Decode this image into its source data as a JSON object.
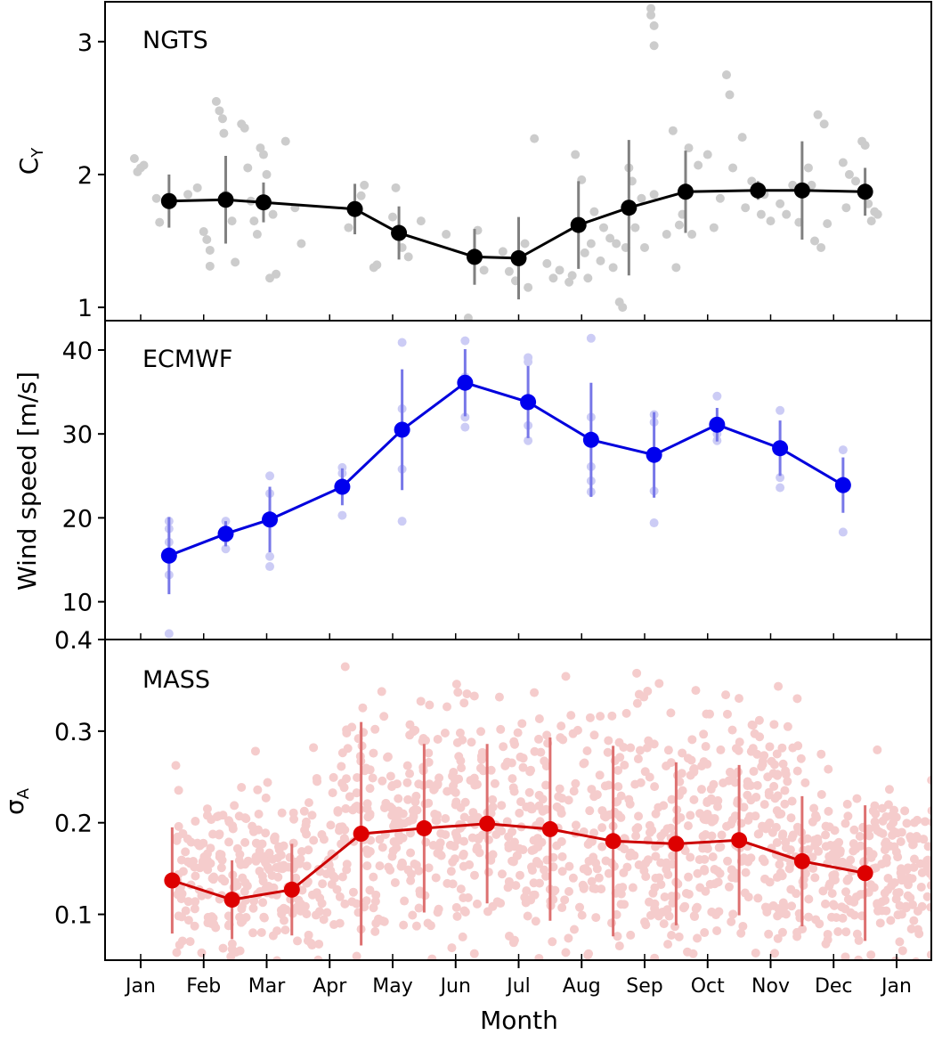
{
  "figure": {
    "xlabel": "Month",
    "x_ticks": [
      "Jan",
      "Feb",
      "Mar",
      "Apr",
      "May",
      "Jun",
      "Jul",
      "Aug",
      "Sep",
      "Oct",
      "Nov",
      "Dec",
      "Jan"
    ]
  },
  "chart_data": [
    {
      "type": "scatter+line",
      "panel_label": "NGTS",
      "ylabel_base": "C",
      "ylabel_sub": "Y",
      "ylim": [
        0.9,
        3.3
      ],
      "yticks": [
        "1",
        "2",
        "3"
      ],
      "colors": {
        "line": "#000000",
        "marker": "#000000",
        "errorbar": "#808080",
        "scatter": "#cccccc"
      },
      "line_points": [
        {
          "x": 1.45,
          "y": 1.8,
          "err": 0.2
        },
        {
          "x": 2.35,
          "y": 1.81,
          "err": 0.33
        },
        {
          "x": 2.95,
          "y": 1.79,
          "err": 0.15
        },
        {
          "x": 4.4,
          "y": 1.74,
          "err": 0.19
        },
        {
          "x": 5.1,
          "y": 1.56,
          "err": 0.2
        },
        {
          "x": 6.3,
          "y": 1.38,
          "err": 0.21
        },
        {
          "x": 7.0,
          "y": 1.37,
          "err": 0.31
        },
        {
          "x": 7.95,
          "y": 1.62,
          "err": 0.33
        },
        {
          "x": 8.75,
          "y": 1.75,
          "err": 0.51
        },
        {
          "x": 9.65,
          "y": 1.87,
          "err": 0.31
        },
        {
          "x": 10.8,
          "y": 1.88,
          "err": 0.07
        },
        {
          "x": 11.5,
          "y": 1.88,
          "err": 0.37
        },
        {
          "x": 12.5,
          "y": 1.87,
          "err": 0.18
        }
      ],
      "scatter_points": [
        [
          0.9,
          2.12
        ],
        [
          0.95,
          2.02
        ],
        [
          1.0,
          2.05
        ],
        [
          1.05,
          2.07
        ],
        [
          1.25,
          1.82
        ],
        [
          1.3,
          1.64
        ],
        [
          1.75,
          1.85
        ],
        [
          1.9,
          1.9
        ],
        [
          2.0,
          1.57
        ],
        [
          2.05,
          1.51
        ],
        [
          2.1,
          1.43
        ],
        [
          2.1,
          1.31
        ],
        [
          2.2,
          2.55
        ],
        [
          2.25,
          2.48
        ],
        [
          2.3,
          2.42
        ],
        [
          2.32,
          2.31
        ],
        [
          2.35,
          1.85
        ],
        [
          2.45,
          1.65
        ],
        [
          2.5,
          1.34
        ],
        [
          2.6,
          2.38
        ],
        [
          2.65,
          2.35
        ],
        [
          2.7,
          2.05
        ],
        [
          2.75,
          1.8
        ],
        [
          2.8,
          1.65
        ],
        [
          2.85,
          1.55
        ],
        [
          2.9,
          2.2
        ],
        [
          2.95,
          2.15
        ],
        [
          3.0,
          2.0
        ],
        [
          3.05,
          1.22
        ],
        [
          3.1,
          1.7
        ],
        [
          3.15,
          1.25
        ],
        [
          3.3,
          2.25
        ],
        [
          3.45,
          1.75
        ],
        [
          3.55,
          1.48
        ],
        [
          4.3,
          1.6
        ],
        [
          4.5,
          1.84
        ],
        [
          4.55,
          1.92
        ],
        [
          4.7,
          1.3
        ],
        [
          4.75,
          1.32
        ],
        [
          5.0,
          1.68
        ],
        [
          5.05,
          1.9
        ],
        [
          5.15,
          1.45
        ],
        [
          5.25,
          1.38
        ],
        [
          5.45,
          1.65
        ],
        [
          5.85,
          1.55
        ],
        [
          6.2,
          0.92
        ],
        [
          6.25,
          0.87
        ],
        [
          6.35,
          1.58
        ],
        [
          6.45,
          1.28
        ],
        [
          6.75,
          1.42
        ],
        [
          6.85,
          1.27
        ],
        [
          6.95,
          1.2
        ],
        [
          7.1,
          1.48
        ],
        [
          7.15,
          1.15
        ],
        [
          7.25,
          2.27
        ],
        [
          7.45,
          1.33
        ],
        [
          7.55,
          1.22
        ],
        [
          7.65,
          1.28
        ],
        [
          7.8,
          1.19
        ],
        [
          7.85,
          1.24
        ],
        [
          7.9,
          2.15
        ],
        [
          8.0,
          1.96
        ],
        [
          8.05,
          1.41
        ],
        [
          8.1,
          1.22
        ],
        [
          8.15,
          1.48
        ],
        [
          8.2,
          1.72
        ],
        [
          8.3,
          1.35
        ],
        [
          8.35,
          1.6
        ],
        [
          8.45,
          1.52
        ],
        [
          8.5,
          1.3
        ],
        [
          8.55,
          1.48
        ],
        [
          8.6,
          1.04
        ],
        [
          8.65,
          1.0
        ],
        [
          8.7,
          1.45
        ],
        [
          8.75,
          2.05
        ],
        [
          8.8,
          1.95
        ],
        [
          8.85,
          1.6
        ],
        [
          8.95,
          1.82
        ],
        [
          9.0,
          1.45
        ],
        [
          9.15,
          1.85
        ],
        [
          9.35,
          1.55
        ],
        [
          9.45,
          2.33
        ],
        [
          9.5,
          1.3
        ],
        [
          9.55,
          1.62
        ],
        [
          9.6,
          1.7
        ],
        [
          9.7,
          2.2
        ],
        [
          9.75,
          1.55
        ],
        [
          9.85,
          2.07
        ],
        [
          10.0,
          2.15
        ],
        [
          10.1,
          1.6
        ],
        [
          10.2,
          1.82
        ],
        [
          10.3,
          2.75
        ],
        [
          10.35,
          2.6
        ],
        [
          10.4,
          2.05
        ],
        [
          10.55,
          2.28
        ],
        [
          10.6,
          1.75
        ],
        [
          10.7,
          1.95
        ],
        [
          10.85,
          1.7
        ],
        [
          10.9,
          1.85
        ],
        [
          11.0,
          1.65
        ],
        [
          11.15,
          1.78
        ],
        [
          11.25,
          1.7
        ],
        [
          11.35,
          1.92
        ],
        [
          11.45,
          1.64
        ],
        [
          11.6,
          2.05
        ],
        [
          11.65,
          1.92
        ],
        [
          11.7,
          1.5
        ],
        [
          11.75,
          2.45
        ],
        [
          11.8,
          1.45
        ],
        [
          11.85,
          2.38
        ],
        [
          11.9,
          1.63
        ],
        [
          12.15,
          2.09
        ],
        [
          12.2,
          1.75
        ],
        [
          12.25,
          2.0
        ],
        [
          12.35,
          1.95
        ],
        [
          12.45,
          2.25
        ],
        [
          12.5,
          2.22
        ],
        [
          12.55,
          1.78
        ],
        [
          12.6,
          1.65
        ],
        [
          12.65,
          1.72
        ],
        [
          12.7,
          1.7
        ],
        [
          9.1,
          3.2
        ],
        [
          9.15,
          3.12
        ],
        [
          9.1,
          3.25
        ],
        [
          9.15,
          2.97
        ]
      ]
    },
    {
      "type": "scatter+line",
      "panel_label": "ECMWF",
      "ylabel": "Wind speed [m/s]",
      "ylim": [
        5.5,
        43.5
      ],
      "yticks": [
        "10",
        "20",
        "30",
        "40"
      ],
      "colors": {
        "line": "#0000dd",
        "marker": "#0000ee",
        "errorbar": "#7777e8",
        "scatter": "#ccccf5"
      },
      "line_points": [
        {
          "x": 1.45,
          "y": 15.5,
          "err": 4.6
        },
        {
          "x": 2.35,
          "y": 18.1,
          "err": 1.5
        },
        {
          "x": 3.05,
          "y": 19.8,
          "err": 3.9
        },
        {
          "x": 4.2,
          "y": 23.7,
          "err": 2.2
        },
        {
          "x": 5.15,
          "y": 30.5,
          "err": 7.2
        },
        {
          "x": 6.15,
          "y": 36.1,
          "err": 4.0
        },
        {
          "x": 7.15,
          "y": 33.8,
          "err": 4.3
        },
        {
          "x": 8.15,
          "y": 29.3,
          "err": 6.8
        },
        {
          "x": 9.15,
          "y": 27.5,
          "err": 5.1
        },
        {
          "x": 10.15,
          "y": 31.1,
          "err": 2.0
        },
        {
          "x": 11.15,
          "y": 28.3,
          "err": 3.3
        },
        {
          "x": 12.15,
          "y": 23.9,
          "err": 3.3
        }
      ],
      "scatter_points": [
        [
          1.45,
          6.2
        ],
        [
          1.45,
          13.2
        ],
        [
          1.45,
          17.1
        ],
        [
          1.45,
          18.7
        ],
        [
          1.45,
          19.6
        ],
        [
          2.35,
          16.3
        ],
        [
          2.35,
          19.6
        ],
        [
          2.35,
          17.5
        ],
        [
          3.05,
          14.2
        ],
        [
          3.05,
          15.4
        ],
        [
          3.05,
          22.9
        ],
        [
          3.05,
          25.0
        ],
        [
          4.2,
          20.3
        ],
        [
          4.2,
          25.3
        ],
        [
          4.2,
          26.0
        ],
        [
          5.15,
          19.6
        ],
        [
          5.15,
          25.8
        ],
        [
          5.15,
          33.0
        ],
        [
          5.15,
          40.9
        ],
        [
          6.15,
          30.8
        ],
        [
          6.15,
          32.0
        ],
        [
          6.15,
          36.8
        ],
        [
          6.15,
          41.1
        ],
        [
          7.15,
          29.2
        ],
        [
          7.15,
          31.0
        ],
        [
          7.15,
          38.6
        ],
        [
          7.15,
          39.1
        ],
        [
          8.15,
          23.1
        ],
        [
          8.15,
          24.4
        ],
        [
          8.15,
          26.1
        ],
        [
          8.15,
          32.0
        ],
        [
          8.15,
          41.4
        ],
        [
          9.15,
          19.4
        ],
        [
          9.15,
          23.2
        ],
        [
          9.15,
          31.4
        ],
        [
          9.15,
          32.3
        ],
        [
          10.15,
          29.2
        ],
        [
          10.15,
          30.0
        ],
        [
          10.15,
          34.5
        ],
        [
          11.15,
          23.6
        ],
        [
          11.15,
          24.8
        ],
        [
          11.15,
          32.8
        ],
        [
          12.15,
          18.3
        ],
        [
          12.15,
          28.1
        ]
      ]
    },
    {
      "type": "scatter+line",
      "panel_label": "MASS",
      "ylabel_base": "σ",
      "ylabel_sub": "A",
      "ylim": [
        0.05,
        0.4
      ],
      "yticks": [
        "0.1",
        "0.2",
        "0.3",
        "0.4"
      ],
      "colors": {
        "line": "#cc0000",
        "marker": "#dd0000",
        "errorbar": "#dd7070",
        "scatter": "#f5cccc"
      },
      "line_points": [
        {
          "x": 1.5,
          "y": 0.137,
          "err": 0.058
        },
        {
          "x": 2.45,
          "y": 0.116,
          "err": 0.043
        },
        {
          "x": 3.4,
          "y": 0.127,
          "err": 0.05
        },
        {
          "x": 4.5,
          "y": 0.188,
          "err": 0.122
        },
        {
          "x": 5.5,
          "y": 0.194,
          "err": 0.092
        },
        {
          "x": 6.5,
          "y": 0.199,
          "err": 0.087
        },
        {
          "x": 7.5,
          "y": 0.193,
          "err": 0.1
        },
        {
          "x": 8.5,
          "y": 0.18,
          "err": 0.104
        },
        {
          "x": 9.5,
          "y": 0.177,
          "err": 0.089
        },
        {
          "x": 10.5,
          "y": 0.181,
          "err": 0.082
        },
        {
          "x": 11.5,
          "y": 0.158,
          "err": 0.071
        },
        {
          "x": 12.5,
          "y": 0.145,
          "err": 0.074
        }
      ],
      "scatter_points": [],
      "scatter_note_count": 1400
    }
  ]
}
